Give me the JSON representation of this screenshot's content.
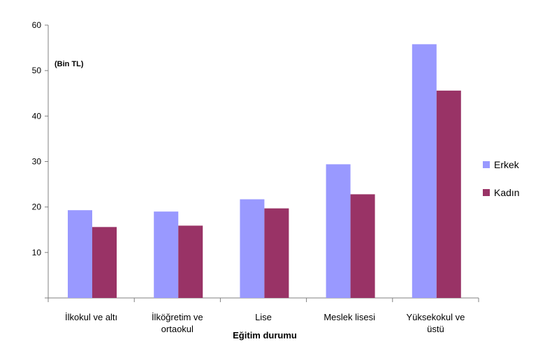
{
  "chart_data": {
    "type": "bar",
    "title": "",
    "unit_label": "(Bin TL)",
    "xlabel": "Eğitim durumu",
    "ylabel": "",
    "ylim": [
      0,
      60
    ],
    "yticks": [
      "10",
      "20",
      "30",
      "40",
      "50",
      "60"
    ],
    "grid": false,
    "legend_position": "right",
    "categories": [
      [
        "İlkokul ve altı"
      ],
      [
        "İlköğretim ve",
        "ortaokul"
      ],
      [
        "Lise"
      ],
      [
        "Meslek lisesi"
      ],
      [
        "Yüksekokul ve",
        "üstü"
      ]
    ],
    "series": [
      {
        "name": "Erkek",
        "color": "#9999ff",
        "values": [
          19.3,
          19.0,
          21.7,
          29.4,
          55.8
        ]
      },
      {
        "name": "Kadın",
        "color": "#993366",
        "values": [
          15.6,
          15.9,
          19.7,
          22.8,
          45.6
        ]
      }
    ]
  }
}
